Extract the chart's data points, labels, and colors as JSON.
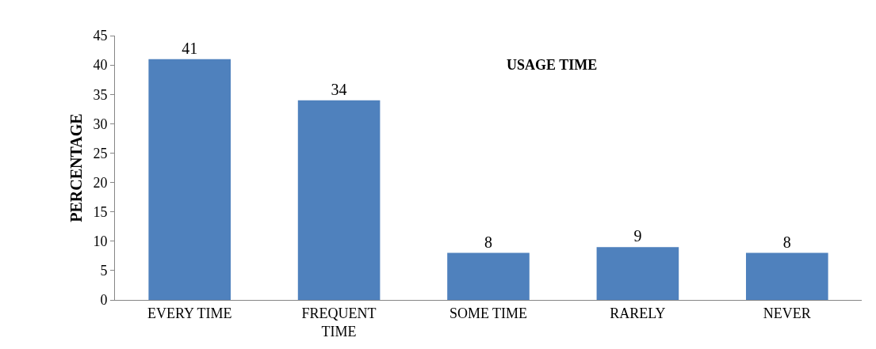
{
  "chart_data": {
    "type": "bar",
    "title": "USAGE TIME",
    "ylabel": "PERCENTAGE",
    "categories": [
      "EVERY TIME",
      "FREQUENT TIME",
      "SOME TIME",
      "RARELY",
      "NEVER"
    ],
    "values": [
      41,
      34,
      8,
      9,
      8
    ],
    "color": "#4f81bd",
    "ylim": [
      0,
      45
    ],
    "yticks": [
      0,
      5,
      10,
      15,
      20,
      25,
      30,
      35,
      40,
      45
    ],
    "grid": false,
    "data_labels": true
  }
}
